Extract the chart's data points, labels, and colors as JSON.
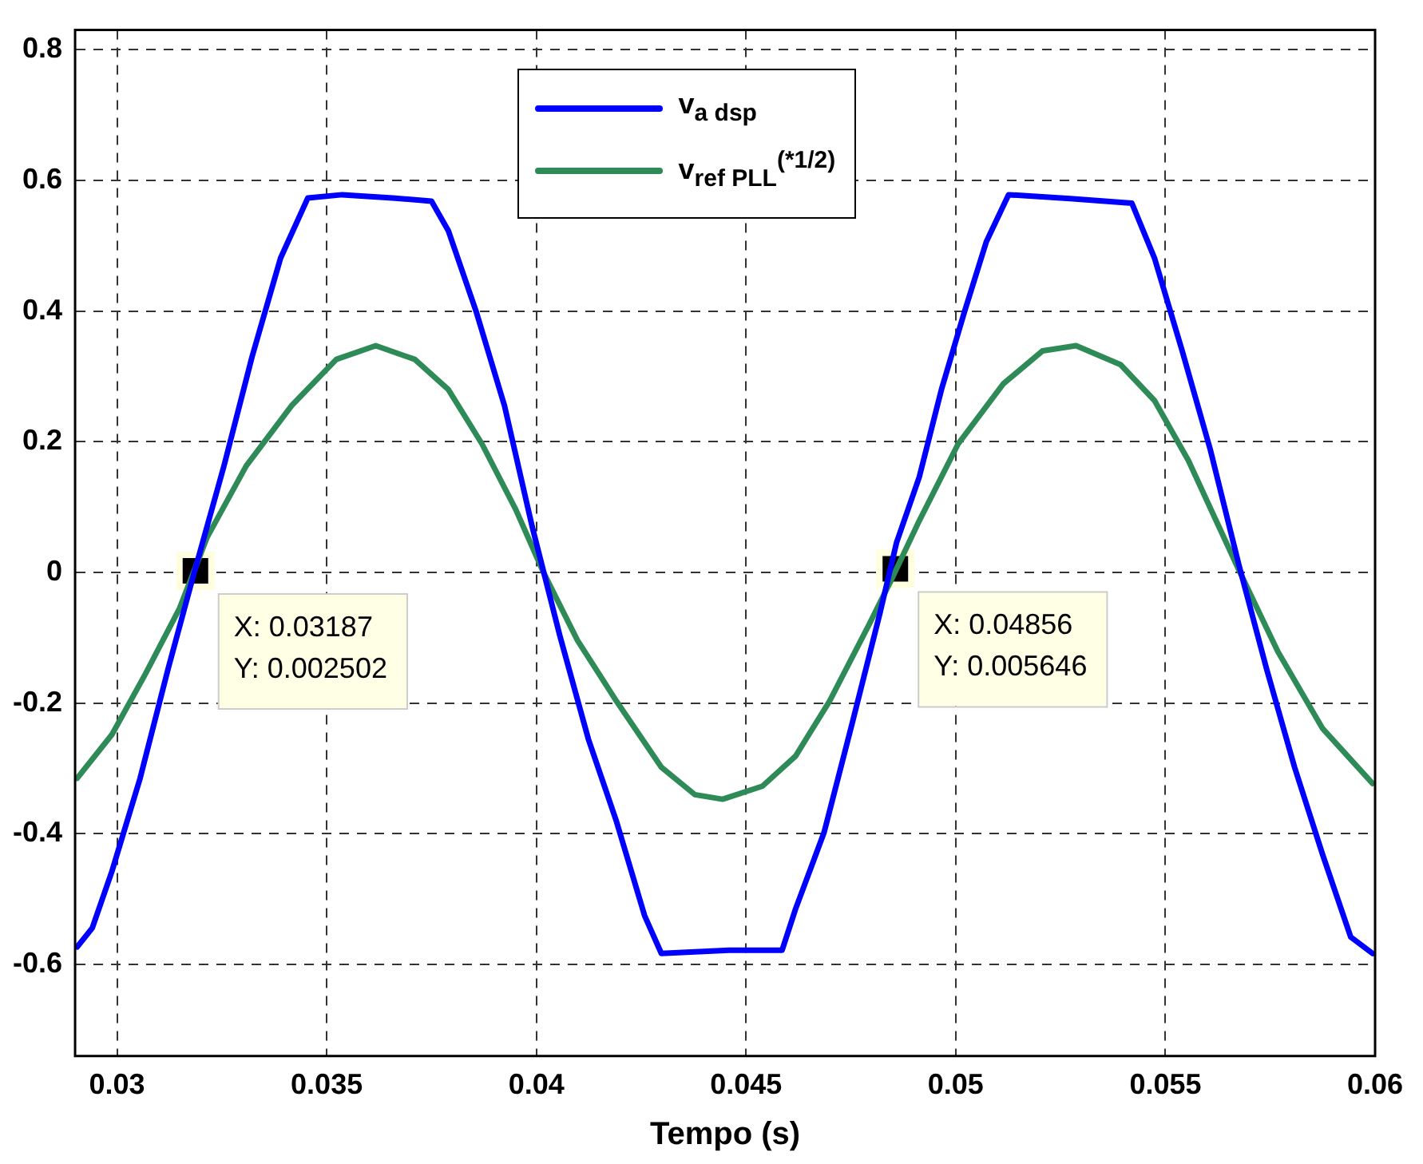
{
  "chart_data": {
    "type": "line",
    "xlabel": "Tempo (s)",
    "xlim": [
      0.029,
      0.06
    ],
    "xticks": [
      0.03,
      0.035,
      0.04,
      0.045,
      0.05,
      0.055,
      0.06
    ],
    "ylim": [
      -0.74,
      0.83
    ],
    "yticks": [
      -0.6,
      -0.4,
      -0.2,
      0,
      0.2,
      0.4,
      0.6,
      0.8
    ],
    "grid": true,
    "legend": "top",
    "marker": "none",
    "line_style": "solid",
    "series": [
      {
        "name": "v$_{a dsp}$",
        "color": "#0000ff",
        "x": [
          0.02905,
          0.02941,
          0.02988,
          0.03055,
          0.03122,
          0.03182,
          0.03255,
          0.03322,
          0.0339,
          0.03455,
          0.03537,
          0.03657,
          0.0375,
          0.0379,
          0.03857,
          0.03924,
          0.0399,
          0.04056,
          0.04124,
          0.04191,
          0.04258,
          0.04298,
          0.04459,
          0.04586,
          0.04618,
          0.04686,
          0.04753,
          0.04819,
          0.04859,
          0.04913,
          0.04966,
          0.0502,
          0.05073,
          0.05126,
          0.05273,
          0.0542,
          0.05474,
          0.0554,
          0.05607,
          0.05675,
          0.05741,
          0.05808,
          0.05875,
          0.05942,
          0.05994
        ],
        "values": [
          -0.573,
          -0.544,
          -0.457,
          -0.315,
          -0.147,
          -0.005,
          0.163,
          0.33,
          0.481,
          0.573,
          0.578,
          0.573,
          0.568,
          0.523,
          0.398,
          0.255,
          0.07,
          -0.097,
          -0.255,
          -0.381,
          -0.525,
          -0.583,
          -0.578,
          -0.578,
          -0.515,
          -0.398,
          -0.231,
          -0.063,
          0.046,
          0.146,
          0.28,
          0.397,
          0.506,
          0.578,
          0.572,
          0.565,
          0.481,
          0.339,
          0.188,
          0.012,
          -0.147,
          -0.298,
          -0.432,
          -0.558,
          -0.583
        ]
      },
      {
        "name": "v$_{ref PLL}$$^{(*1/2)}$",
        "color": "#2e8b57",
        "x": [
          0.02905,
          0.02988,
          0.03068,
          0.03149,
          0.03215,
          0.03308,
          0.03416,
          0.03523,
          0.03617,
          0.0371,
          0.0379,
          0.0387,
          0.03951,
          0.04017,
          0.04098,
          0.04191,
          0.04298,
          0.04378,
          0.04444,
          0.04539,
          0.04618,
          0.04699,
          0.04793,
          0.04846,
          0.04913,
          0.05006,
          0.05114,
          0.05207,
          0.05287,
          0.05393,
          0.05474,
          0.05555,
          0.05675,
          0.05768,
          0.05875,
          0.05994
        ],
        "values": [
          -0.315,
          -0.248,
          -0.155,
          -0.055,
          0.054,
          0.163,
          0.255,
          0.326,
          0.347,
          0.326,
          0.28,
          0.197,
          0.096,
          0,
          -0.104,
          -0.197,
          -0.298,
          -0.34,
          -0.347,
          -0.327,
          -0.281,
          -0.197,
          -0.08,
          -0.012,
          0.079,
          0.197,
          0.289,
          0.339,
          0.347,
          0.318,
          0.263,
          0.171,
          0.004,
          -0.121,
          -0.239,
          -0.323
        ]
      }
    ],
    "annotations": [
      {
        "text": "X: 0.03187\nY: 0.002502",
        "x": 0.03187,
        "y": 0.002502
      },
      {
        "text": "X: 0.04856\nY: 0.005646",
        "x": 0.04856,
        "y": 0.005646
      }
    ]
  }
}
